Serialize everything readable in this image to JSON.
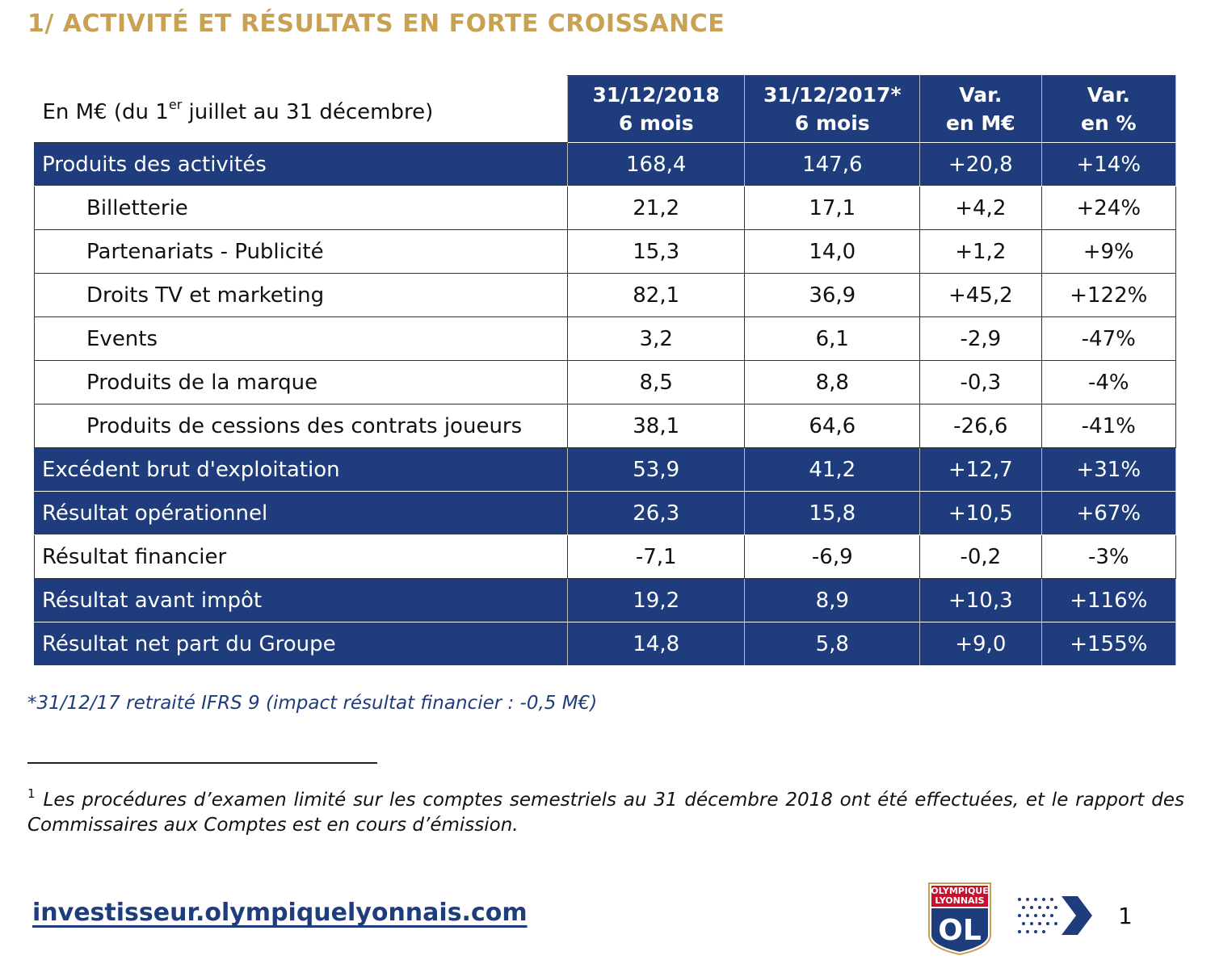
{
  "header": {
    "title": "1/ ACTIVITÉ ET RÉSULTATS EN FORTE CROISSANCE"
  },
  "table": {
    "caption": {
      "before": "En M€ (du 1",
      "sup": "er",
      "after": " juillet au 31 décembre)"
    },
    "columns": [
      [
        "31/12/2018",
        "6 mois"
      ],
      [
        "31/12/2017*",
        "6 mois"
      ],
      [
        "Var.",
        "en M€"
      ],
      [
        "Var.",
        "en %"
      ]
    ],
    "rows": [
      [
        "Produits des activités",
        "168,4",
        "147,6",
        "+20,8",
        "+14%"
      ],
      [
        "Billetterie",
        "21,2",
        "17,1",
        "+4,2",
        "+24%"
      ],
      [
        "Partenariats - Publicité",
        "15,3",
        "14,0",
        "+1,2",
        "+9%"
      ],
      [
        "Droits TV et marketing",
        "82,1",
        "36,9",
        "+45,2",
        "+122%"
      ],
      [
        "Events",
        "3,2",
        "6,1",
        "-2,9",
        "-47%"
      ],
      [
        "Produits de la marque",
        "8,5",
        "8,8",
        "-0,3",
        "-4%"
      ],
      [
        "Produits de cessions des contrats joueurs",
        "38,1",
        "64,6",
        "-26,6",
        "-41%"
      ],
      [
        "Excédent brut d'exploitation",
        "53,9",
        "41,2",
        "+12,7",
        "+31%"
      ],
      [
        "Résultat opérationnel",
        "26,3",
        "15,8",
        "+10,5",
        "+67%"
      ],
      [
        "Résultat financier",
        "-7,1",
        "-6,9",
        "-0,2",
        "-3%"
      ],
      [
        "Résultat avant impôt",
        "19,2",
        "8,9",
        "+10,3",
        "+116%"
      ],
      [
        "Résultat net part du Groupe",
        "14,8",
        "5,8",
        "+9,0",
        "+155%"
      ]
    ],
    "note": "*31/12/17 retraité IFRS 9 (impact résultat financier : -0,5 M€)"
  },
  "footnote": {
    "number": "1",
    "text": "Les procédures d’examen limité sur les comptes semestriels au 31 décembre 2018 ont été effectuées, et le rapport des Commissaires aux Comptes est en cours d’émission."
  },
  "footer": {
    "url": "investisseur.olympiquelyonnais.com",
    "logo_top": "OLYMPIQUE",
    "logo_bottom": "LYONNAIS",
    "logo_mark": "OL",
    "page": "1"
  }
}
